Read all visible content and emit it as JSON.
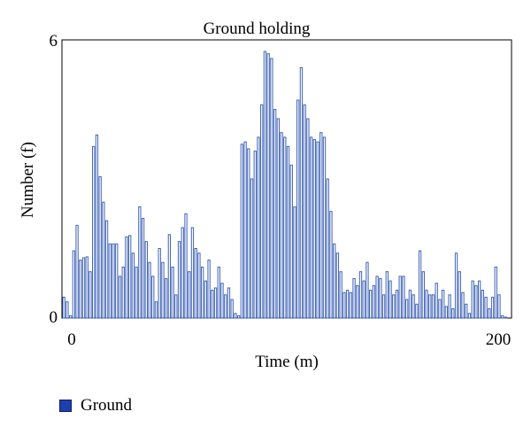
{
  "colors": {
    "series_stroke": "#3f63b8",
    "bar_fill": "#ffffff",
    "legend_swatch": "#1f3fb0"
  },
  "chart_data": {
    "type": "bar",
    "title": "Ground holding",
    "xlabel": "Time (m)",
    "ylabel": "Number (f)",
    "xlim": [
      0,
      200
    ],
    "ylim": [
      0,
      6
    ],
    "x_ticks": [
      "0",
      "200"
    ],
    "y_ticks": [
      "0",
      "6"
    ],
    "grid": false,
    "legend_position": "bottom-left",
    "series": [
      {
        "name": "Ground",
        "values": [
          0.45,
          0.35,
          0.05,
          1.45,
          2.0,
          1.25,
          1.3,
          1.32,
          1.0,
          3.7,
          3.95,
          3.05,
          2.5,
          2.1,
          1.6,
          1.6,
          1.6,
          0.9,
          1.1,
          1.75,
          1.78,
          1.4,
          1.1,
          2.4,
          2.15,
          1.65,
          1.2,
          0.9,
          0.35,
          1.5,
          1.2,
          0.85,
          1.8,
          1.1,
          0.5,
          1.65,
          1.95,
          2.25,
          1.0,
          1.95,
          1.5,
          1.4,
          1.1,
          0.8,
          1.25,
          0.6,
          0.65,
          1.1,
          0.75,
          0.5,
          0.65,
          0.4,
          0.1,
          0.05,
          3.75,
          3.8,
          3.65,
          3.0,
          3.6,
          3.9,
          4.6,
          5.75,
          5.7,
          5.6,
          4.5,
          4.3,
          4.0,
          3.9,
          3.7,
          3.3,
          2.4,
          4.7,
          5.4,
          4.6,
          4.3,
          3.9,
          3.85,
          3.8,
          4.0,
          3.9,
          3.0,
          2.3,
          1.6,
          1.4,
          1.0,
          0.55,
          0.6,
          0.55,
          0.85,
          0.7,
          1.0,
          0.8,
          1.2,
          0.6,
          0.7,
          0.9,
          0.85,
          0.5,
          1.0,
          0.8,
          0.5,
          0.6,
          0.9,
          0.9,
          0.4,
          0.6,
          0.5,
          0.3,
          1.45,
          1.0,
          0.6,
          0.5,
          0.5,
          0.75,
          0.4,
          0.6,
          0.25,
          0.5,
          0.2,
          1.4,
          1.0,
          0.55,
          0.3,
          0.1,
          0.8,
          0.7,
          0.8,
          0.6,
          0.45,
          0.2,
          0.45,
          1.1,
          0.5,
          0.05,
          0.02
        ]
      }
    ]
  }
}
